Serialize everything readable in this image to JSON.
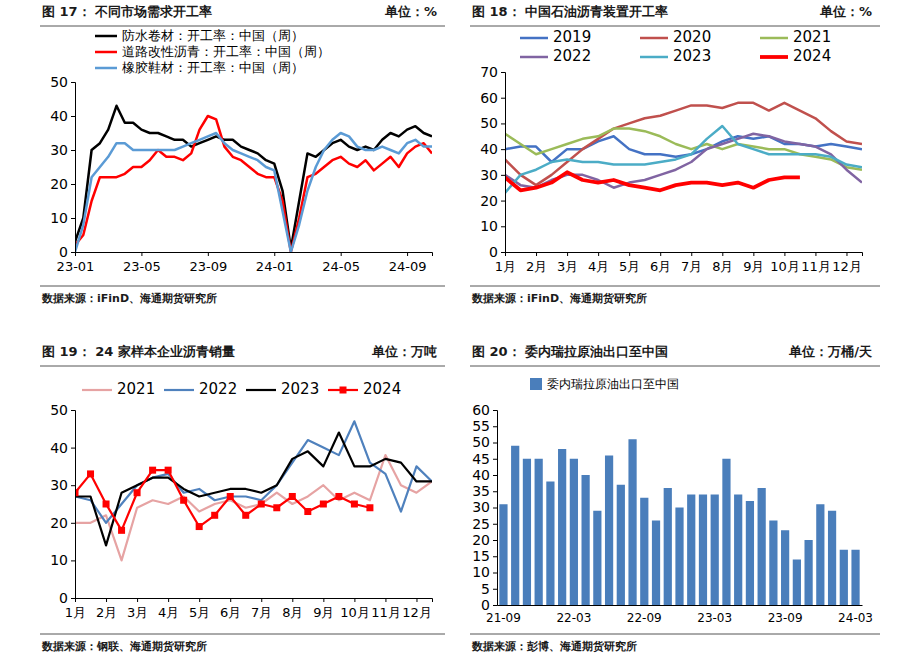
{
  "chart_data": [
    {
      "type": "line",
      "title": "图 17： 不同市场需求开工率",
      "subtitle": "单位：%",
      "source": "数据来源：iFinD、海通期货研究所",
      "categories": [
        "23-01",
        null,
        null,
        null,
        null,
        null,
        null,
        null,
        "23-05",
        null,
        null,
        null,
        null,
        null,
        null,
        null,
        "23-09",
        null,
        null,
        null,
        null,
        null,
        null,
        null,
        "24-01",
        null,
        null,
        null,
        null,
        null,
        null,
        null,
        "24-05",
        null,
        null,
        null,
        null,
        null,
        null,
        null,
        "24-09",
        null,
        null,
        null
      ],
      "series": [
        {
          "name": "防水卷材：开工率：中国（周）",
          "color": "#000000",
          "values": [
            3,
            10,
            30,
            32,
            36,
            43,
            38,
            38,
            36,
            35,
            35,
            34,
            33,
            33,
            31,
            32,
            33,
            34,
            33,
            33,
            31,
            30,
            29,
            27,
            26,
            18,
            1,
            15,
            29,
            28,
            30,
            32,
            33,
            31,
            30,
            31,
            30,
            33,
            35,
            34,
            36,
            37,
            35,
            34
          ]
        },
        {
          "name": "道路改性沥青：开工率：中国（周）",
          "color": "#ff0000",
          "values": [
            2,
            5,
            15,
            22,
            22,
            22,
            23,
            25,
            25,
            27,
            30,
            28,
            28,
            27,
            29,
            36,
            40,
            39,
            31,
            28,
            27,
            25,
            23,
            22,
            22,
            15,
            0,
            10,
            22,
            23,
            25,
            27,
            28,
            26,
            25,
            27,
            24,
            26,
            28,
            25,
            29,
            31,
            32,
            29
          ]
        },
        {
          "name": "橡胶鞋材：开工率：中国（周）",
          "color": "#5b9bd5",
          "values": [
            0,
            8,
            22,
            25,
            28,
            32,
            32,
            30,
            30,
            30,
            30,
            30,
            30,
            31,
            32,
            33,
            34,
            35,
            32,
            30,
            29,
            28,
            27,
            25,
            24,
            12,
            0,
            8,
            18,
            25,
            30,
            33,
            35,
            34,
            31,
            30,
            30,
            31,
            30,
            29,
            32,
            33,
            31,
            31
          ]
        }
      ],
      "ylim": [
        0,
        50
      ],
      "yticks": [
        0,
        10,
        20,
        30,
        40,
        50
      ],
      "grid": false,
      "legend": "top-left"
    },
    {
      "type": "line",
      "title": "图 18： 中国石油沥青装置开工率",
      "subtitle": "单位：%",
      "source": "数据来源：iFinD、海通期货研究所",
      "categories": [
        "1月",
        null,
        "2月",
        null,
        "3月",
        null,
        "4月",
        null,
        "5月",
        null,
        "6月",
        null,
        "7月",
        null,
        "8月",
        null,
        "9月",
        null,
        "10月",
        null,
        "11月",
        null,
        "12月",
        null
      ],
      "series": [
        {
          "name": "2019",
          "color": "#4472c4",
          "values": [
            40,
            41,
            41,
            35,
            40,
            40,
            43,
            45,
            40,
            38,
            38,
            37,
            38,
            40,
            43,
            45,
            44,
            45,
            42,
            42,
            41,
            42,
            41,
            40
          ]
        },
        {
          "name": "2020",
          "color": "#c0504d",
          "values": [
            36,
            30,
            26,
            30,
            35,
            40,
            44,
            48,
            50,
            52,
            53,
            55,
            57,
            57,
            56,
            58,
            58,
            55,
            58,
            55,
            52,
            47,
            43,
            42
          ]
        },
        {
          "name": "2021",
          "color": "#9bbb59",
          "values": [
            46,
            42,
            38,
            40,
            42,
            44,
            45,
            48,
            48,
            47,
            45,
            42,
            40,
            42,
            40,
            42,
            41,
            40,
            40,
            38,
            37,
            36,
            33,
            32
          ]
        },
        {
          "name": "2022",
          "color": "#8064a2",
          "values": [
            30,
            26,
            25,
            28,
            30,
            30,
            28,
            25,
            27,
            28,
            30,
            32,
            35,
            40,
            42,
            44,
            46,
            45,
            43,
            42,
            41,
            38,
            32,
            27
          ]
        },
        {
          "name": "2023",
          "color": "#4bacc6",
          "values": [
            23,
            30,
            32,
            35,
            36,
            35,
            35,
            34,
            34,
            34,
            35,
            36,
            38,
            44,
            49,
            42,
            40,
            38,
            38,
            38,
            38,
            37,
            34,
            33
          ]
        },
        {
          "name": "2024",
          "color": "#ff0000",
          "values": [
            29,
            24,
            25,
            27,
            31,
            28,
            27,
            28,
            26,
            25,
            24,
            26,
            27,
            27,
            26,
            27,
            25,
            28,
            29,
            29,
            null,
            null,
            null,
            null
          ]
        }
      ],
      "ylim": [
        0,
        70
      ],
      "yticks": [
        0,
        10,
        20,
        30,
        40,
        50,
        60,
        70
      ],
      "grid": false,
      "legend": "top"
    },
    {
      "type": "line",
      "title": "图 19： 24 家样本企业沥青销量",
      "subtitle": "单位：万吨",
      "source": "数据来源：钢联、海通期货研究所",
      "categories": [
        "1月",
        null,
        "2月",
        null,
        "3月",
        null,
        "4月",
        null,
        "5月",
        null,
        "6月",
        null,
        "7月",
        null,
        "8月",
        null,
        "9月",
        null,
        "10月",
        null,
        "11月",
        null,
        "12月",
        null
      ],
      "series": [
        {
          "name": "2021",
          "color": "#e6a3a3",
          "values": [
            20,
            20,
            22,
            10,
            24,
            26,
            25,
            27,
            23,
            25,
            26,
            24,
            25,
            28,
            25,
            27,
            30,
            26,
            28,
            26,
            38,
            30,
            28,
            31
          ]
        },
        {
          "name": "2022",
          "color": "#4f81bd",
          "values": [
            27,
            26,
            20,
            25,
            30,
            32,
            33,
            28,
            29,
            26,
            27,
            27,
            26,
            30,
            36,
            42,
            40,
            38,
            47,
            36,
            33,
            23,
            35,
            31
          ]
        },
        {
          "name": "2023",
          "color": "#000000",
          "values": [
            27,
            27,
            14,
            28,
            30,
            32,
            32,
            29,
            27,
            28,
            29,
            29,
            28,
            30,
            37,
            39,
            35,
            44,
            35,
            35,
            37,
            36,
            31,
            31
          ]
        },
        {
          "name": "2024",
          "color": "#ff0000",
          "marker": "square",
          "values": [
            28,
            33,
            25,
            18,
            28,
            34,
            34,
            26,
            19,
            22,
            27,
            22,
            25,
            24,
            27,
            23,
            25,
            27,
            25,
            24,
            null,
            null,
            null,
            null
          ]
        }
      ],
      "ylim": [
        0,
        50
      ],
      "yticks": [
        0,
        10,
        20,
        30,
        40,
        50
      ],
      "grid": false,
      "legend": "top"
    },
    {
      "type": "bar",
      "title": "图 20： 委内瑞拉原油出口至中国",
      "subtitle": "单位：万桶/天",
      "source": "数据来源：彭博、海通期货研究所",
      "categories": [
        "21-09",
        null,
        null,
        null,
        null,
        null,
        "22-03",
        null,
        null,
        null,
        null,
        null,
        "22-09",
        null,
        null,
        null,
        null,
        null,
        "23-03",
        null,
        null,
        null,
        null,
        null,
        "23-09",
        null,
        null,
        null,
        null,
        null,
        "24-03"
      ],
      "series": [
        {
          "name": "委内瑞拉原油出口至中国",
          "color": "#4a7ebb",
          "values": [
            31,
            49,
            45,
            45,
            38,
            48,
            45,
            40,
            29,
            46,
            37,
            51,
            33,
            26,
            36,
            30,
            34,
            34,
            34,
            45,
            34,
            32,
            36,
            26,
            23,
            14,
            20,
            31,
            29,
            17,
            17
          ]
        }
      ],
      "ylim": [
        0,
        60
      ],
      "yticks": [
        0,
        5,
        10,
        15,
        20,
        25,
        30,
        35,
        40,
        45,
        50,
        55,
        60
      ],
      "grid": false,
      "legend": "top"
    }
  ]
}
